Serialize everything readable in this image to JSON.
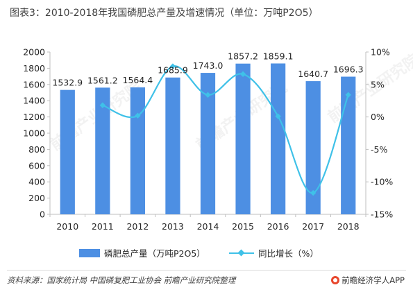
{
  "title": "图表3：2010-2018年我国磷肥总产量及增速情况（单位：万吨P2O5）",
  "chart_data": {
    "type": "bar",
    "categories": [
      "2010",
      "2011",
      "2012",
      "2013",
      "2014",
      "2015",
      "2016",
      "2017",
      "2018"
    ],
    "series": [
      {
        "name": "磷肥总产量（万吨P2O5）",
        "type": "bar",
        "axis": "left",
        "values": [
          1532.9,
          1561.2,
          1564.4,
          1685.9,
          1743.0,
          1857.2,
          1859.1,
          1640.7,
          1696.3
        ],
        "labels": [
          "1532.9",
          "1561.2",
          "1564.4",
          "1685.9",
          "1743.0",
          "1857.2",
          "1859.1",
          "1640.7",
          "1696.3"
        ]
      },
      {
        "name": "同比增长（%）",
        "type": "line",
        "axis": "right",
        "values": [
          null,
          1.8,
          0.2,
          7.8,
          3.4,
          6.6,
          0.1,
          -11.7,
          3.4
        ]
      }
    ],
    "y_left": {
      "min": 0,
      "max": 2000,
      "step": 200,
      "ticks": [
        "0",
        "200",
        "400",
        "600",
        "800",
        "1000",
        "1200",
        "1400",
        "1600",
        "1800",
        "2000"
      ]
    },
    "y_right": {
      "min": -15,
      "max": 10,
      "step": 5,
      "ticks": [
        "-15%",
        "-10%",
        "-5%",
        "0%",
        "5%",
        "10%"
      ]
    },
    "grid": false,
    "legend_position": "bottom",
    "colors": {
      "bar": "#4d8fe3",
      "line": "#3fc1e8",
      "axis": "#bfbfbf",
      "label": "#262626"
    }
  },
  "legend": {
    "bar_label": "磷肥总产量（万吨P2O5）",
    "line_label": "同比增长（%）"
  },
  "footer": {
    "source": "资料来源：国家统计局 中国磷复肥工业协会 前瞻产业研究院整理",
    "brand": "前瞻经济学人APP",
    "brand_icon": "qianzhan-logo-icon",
    "brand_color": "#e8462c"
  },
  "watermark": "前瞻产业研究院"
}
